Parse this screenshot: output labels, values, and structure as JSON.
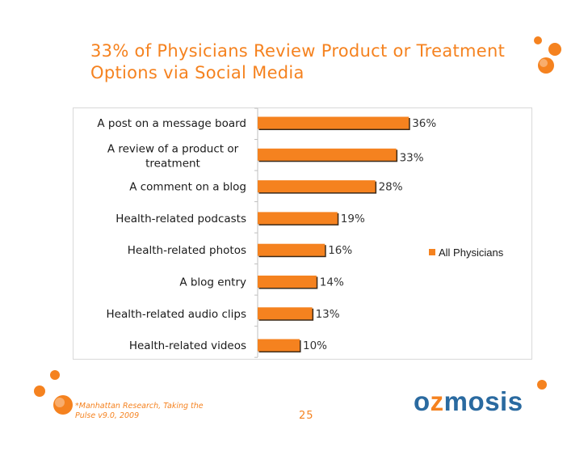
{
  "slide": {
    "title_line1": "33% of Physicians Review Product or Treatment",
    "title_line2": "Options via Social Media",
    "footnote_line1": "*Manhattan Research, Taking the",
    "footnote_line2": "Pulse v9.0, 2009",
    "page_number": "25",
    "logo_text": "ozmosis",
    "accent_color": "#f5821f",
    "logo_color": "#2a6aa0"
  },
  "chart_data": {
    "type": "bar",
    "orientation": "horizontal",
    "title": "33% of Physicians Review Product or Treatment Options via Social Media",
    "xlabel": "",
    "ylabel": "",
    "xlim": [
      0,
      50
    ],
    "categories": [
      "A post on a message board",
      "A review of a product or treatment",
      "A comment on a blog",
      "Health-related podcasts",
      "Health-related photos",
      "A blog entry",
      "Health-related audio clips",
      "Health-related videos"
    ],
    "category_label_lines": [
      [
        "A post on a message board"
      ],
      [
        "A review of a product or",
        "treatment"
      ],
      [
        "A comment on a blog"
      ],
      [
        "Health-related podcasts"
      ],
      [
        "Health-related photos"
      ],
      [
        "A blog entry"
      ],
      [
        "Health-related audio clips"
      ],
      [
        "Health-related videos"
      ]
    ],
    "series": [
      {
        "name": "All Physicians",
        "color": "#f5821f",
        "values": [
          36,
          33,
          28,
          19,
          16,
          14,
          13,
          10
        ],
        "labels": [
          "36%",
          "33%",
          "28%",
          "19%",
          "16%",
          "14%",
          "13%",
          "10%"
        ]
      }
    ],
    "legend": {
      "position": "right",
      "entries": [
        "All Physicians"
      ]
    },
    "grid": false
  }
}
